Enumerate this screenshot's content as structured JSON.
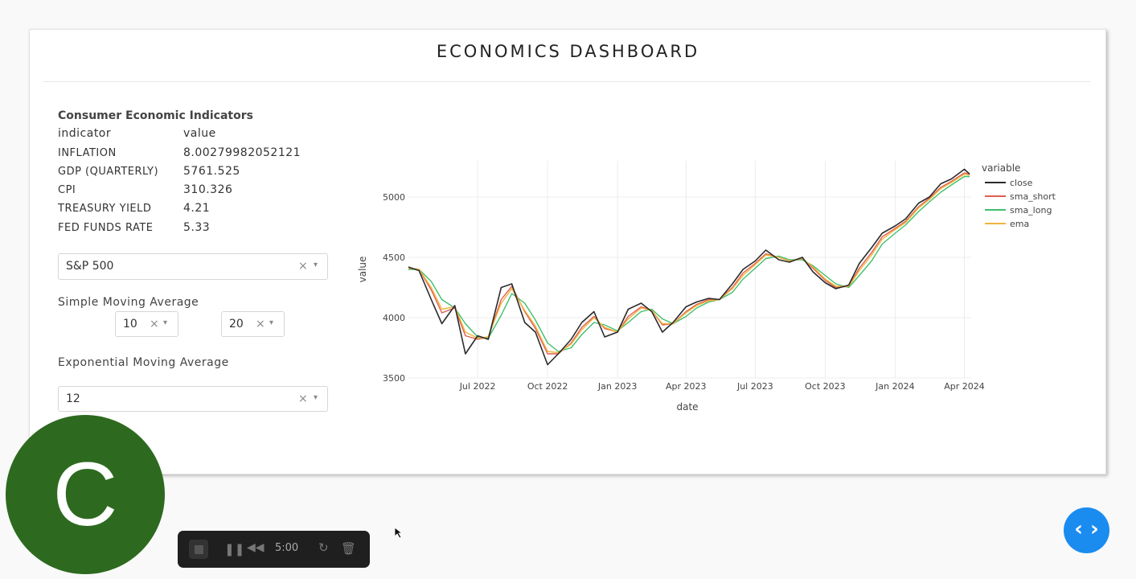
{
  "dashboard": {
    "title": "ECONOMICS DASHBOARD"
  },
  "indicators": {
    "title": "Consumer Economic Indicators",
    "header": {
      "indicator": "indicator",
      "value": "value"
    },
    "rows": [
      {
        "indicator": "INFLATION",
        "value": "8.00279982052121"
      },
      {
        "indicator": "GDP (QUARTERLY)",
        "value": "5761.525"
      },
      {
        "indicator": "CPI",
        "value": "310.326"
      },
      {
        "indicator": "TREASURY YIELD",
        "value": "4.21"
      },
      {
        "indicator": "FED FUNDS RATE",
        "value": "5.33"
      }
    ]
  },
  "controls": {
    "index_select": {
      "value": "S&P 500"
    },
    "sma_label": "Simple Moving Average",
    "sma_short": {
      "value": "10"
    },
    "sma_long": {
      "value": "20"
    },
    "ema_label": "Exponential Moving Average",
    "ema": {
      "value": "12"
    },
    "clear_glyph": "×",
    "caret_glyph": "▾"
  },
  "chart_data": {
    "type": "line",
    "xlabel": "date",
    "ylabel": "value",
    "legend_title": "variable",
    "legend_position": "top-right",
    "grid": true,
    "ylim": [
      3500,
      5300
    ],
    "yticks": [
      "3500",
      "4000",
      "4500",
      "5000"
    ],
    "xticks": [
      "Jul 2022",
      "Oct 2022",
      "Jan 2023",
      "Apr 2023",
      "Jul 2023",
      "Oct 2023",
      "Jan 2024",
      "Apr 2024"
    ],
    "x": [
      "2022-04-01",
      "2022-04-15",
      "2022-05-01",
      "2022-05-15",
      "2022-06-01",
      "2022-06-15",
      "2022-07-01",
      "2022-07-15",
      "2022-08-01",
      "2022-08-15",
      "2022-09-01",
      "2022-09-15",
      "2022-10-01",
      "2022-10-15",
      "2022-11-01",
      "2022-11-15",
      "2022-12-01",
      "2022-12-15",
      "2023-01-01",
      "2023-01-15",
      "2023-02-01",
      "2023-02-15",
      "2023-03-01",
      "2023-03-15",
      "2023-04-01",
      "2023-04-15",
      "2023-05-01",
      "2023-05-15",
      "2023-06-01",
      "2023-06-15",
      "2023-07-01",
      "2023-07-15",
      "2023-08-01",
      "2023-08-15",
      "2023-09-01",
      "2023-09-15",
      "2023-10-01",
      "2023-10-15",
      "2023-11-01",
      "2023-11-15",
      "2023-12-01",
      "2023-12-15",
      "2024-01-01",
      "2024-01-15",
      "2024-02-01",
      "2024-02-15",
      "2024-03-01",
      "2024-03-15",
      "2024-04-01",
      "2024-04-08"
    ],
    "series": [
      {
        "name": "close",
        "color": "#2b2b2b",
        "values": [
          4420,
          4390,
          4150,
          3950,
          4100,
          3700,
          3850,
          3820,
          4250,
          4280,
          3960,
          3880,
          3610,
          3700,
          3820,
          3960,
          4050,
          3840,
          3880,
          4070,
          4120,
          4050,
          3880,
          3960,
          4090,
          4130,
          4160,
          4150,
          4280,
          4400,
          4470,
          4560,
          4480,
          4460,
          4500,
          4380,
          4290,
          4240,
          4270,
          4450,
          4580,
          4700,
          4760,
          4820,
          4950,
          5000,
          5110,
          5150,
          5230,
          5190
        ]
      },
      {
        "name": "sma_short",
        "color": "#e05c4f",
        "values": [
          4410,
          4400,
          4230,
          4040,
          4080,
          3850,
          3820,
          3840,
          4150,
          4260,
          4050,
          3910,
          3700,
          3700,
          3790,
          3920,
          4010,
          3910,
          3880,
          4010,
          4090,
          4060,
          3940,
          3950,
          4050,
          4110,
          4150,
          4150,
          4250,
          4370,
          4450,
          4530,
          4500,
          4470,
          4490,
          4410,
          4310,
          4250,
          4260,
          4410,
          4540,
          4670,
          4740,
          4800,
          4920,
          4990,
          5080,
          5130,
          5200,
          5190
        ]
      },
      {
        "name": "sma_long",
        "color": "#3fbf6e",
        "values": [
          4400,
          4400,
          4300,
          4150,
          4080,
          3950,
          3840,
          3830,
          4020,
          4200,
          4120,
          3980,
          3790,
          3720,
          3750,
          3860,
          3960,
          3940,
          3890,
          3960,
          4050,
          4070,
          3990,
          3950,
          4010,
          4080,
          4130,
          4150,
          4210,
          4320,
          4410,
          4490,
          4510,
          4480,
          4480,
          4430,
          4350,
          4280,
          4250,
          4350,
          4470,
          4610,
          4700,
          4770,
          4880,
          4960,
          5040,
          5100,
          5170,
          5170
        ]
      },
      {
        "name": "ema",
        "color": "#f0b43c",
        "values": [
          4410,
          4400,
          4250,
          4070,
          4090,
          3880,
          3830,
          3840,
          4120,
          4240,
          4060,
          3930,
          3720,
          3710,
          3780,
          3900,
          4000,
          3920,
          3880,
          3990,
          4080,
          4060,
          3950,
          3950,
          4040,
          4100,
          4140,
          4150,
          4240,
          4350,
          4440,
          4520,
          4500,
          4470,
          4490,
          4420,
          4320,
          4260,
          4260,
          4390,
          4520,
          4650,
          4730,
          4790,
          4910,
          4980,
          5070,
          5120,
          5190,
          5180
        ]
      }
    ]
  },
  "avatar": {
    "letter": "C",
    "color": "#2d6a1f"
  },
  "recorder": {
    "time": "5:00"
  },
  "fab": {
    "icon": "code-icon",
    "glyph": "‹ ›",
    "color": "#1a8cf0"
  }
}
